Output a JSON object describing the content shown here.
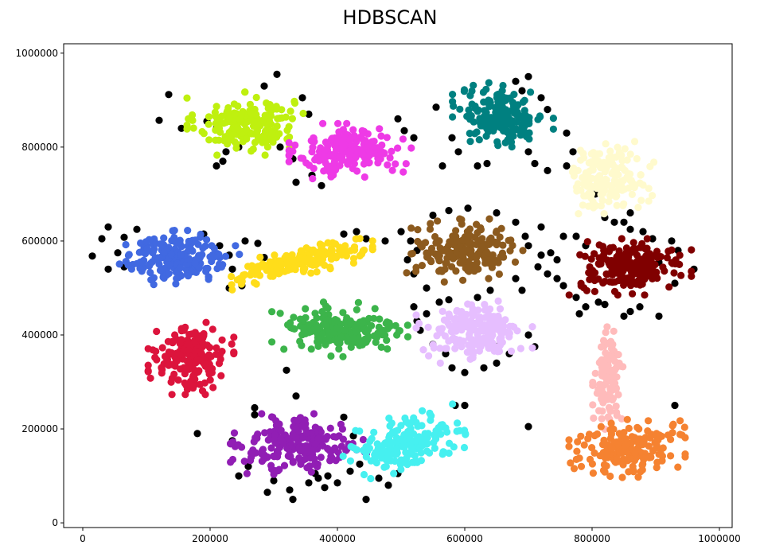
{
  "chart_data": {
    "type": "scatter",
    "title": "HDBSCAN",
    "xlabel": "",
    "ylabel": "",
    "xlim": [
      -30000,
      1020000
    ],
    "ylim": [
      -10000,
      1020000
    ],
    "grid": false,
    "legend": "none",
    "xticks": [
      0,
      200000,
      400000,
      600000,
      800000,
      1000000
    ],
    "xtick_labels": [
      "0",
      "200000",
      "400000",
      "600000",
      "800000",
      "1000000"
    ],
    "yticks": [
      0,
      200000,
      400000,
      600000,
      800000,
      1000000
    ],
    "ytick_labels": [
      "0",
      "200000",
      "400000",
      "600000",
      "800000",
      "1000000"
    ],
    "clusters": [
      {
        "cluster": 0,
        "color": "#BFF00F",
        "center": [
          255000,
          850000
        ],
        "spread": [
          38000,
          28000
        ],
        "tilt": 0.0,
        "points": 190
      },
      {
        "cluster": 1,
        "color": "#EE3AE6",
        "center": [
          420000,
          790000
        ],
        "spread": [
          40000,
          25000
        ],
        "tilt": 0.0,
        "points": 190
      },
      {
        "cluster": 2,
        "color": "#008080",
        "center": [
          660000,
          865000
        ],
        "spread": [
          33000,
          30000
        ],
        "tilt": 0.0,
        "points": 180
      },
      {
        "cluster": 3,
        "color": "#FFFACD",
        "center": [
          825000,
          735000
        ],
        "spread": [
          30000,
          32000
        ],
        "tilt": 0.0,
        "points": 150
      },
      {
        "cluster": 4,
        "color": "#4169E1",
        "center": [
          150000,
          565000
        ],
        "spread": [
          40000,
          24000
        ],
        "tilt": 0.0,
        "points": 200
      },
      {
        "cluster": 5,
        "color": "#FFDD1A",
        "center": [
          340000,
          555000
        ],
        "spread": [
          48000,
          12000
        ],
        "tilt": 0.3,
        "points": 190
      },
      {
        "cluster": 6,
        "color": "#8C5A1E",
        "center": [
          600000,
          580000
        ],
        "spread": [
          38000,
          28000
        ],
        "tilt": 0.0,
        "points": 190
      },
      {
        "cluster": 7,
        "color": "#800000",
        "center": [
          860000,
          545000
        ],
        "spread": [
          40000,
          25000
        ],
        "tilt": 0.0,
        "points": 190
      },
      {
        "cluster": 8,
        "color": "#DC143C",
        "center": [
          170000,
          350000
        ],
        "spread": [
          28000,
          32000
        ],
        "tilt": 0.0,
        "points": 180
      },
      {
        "cluster": 9,
        "color": "#3CB44B",
        "center": [
          405000,
          410000
        ],
        "spread": [
          45000,
          25000
        ],
        "tilt": 0.0,
        "points": 190
      },
      {
        "cluster": 10,
        "color": "#E6BEFF",
        "center": [
          615000,
          405000
        ],
        "spread": [
          38000,
          28000
        ],
        "tilt": 0.0,
        "points": 190
      },
      {
        "cluster": 11,
        "color": "#FFBBBB",
        "center": [
          825000,
          310000
        ],
        "spread": [
          10000,
          45000
        ],
        "tilt": 0.55,
        "points": 110
      },
      {
        "cluster": 12,
        "color": "#911EB4",
        "center": [
          340000,
          165000
        ],
        "spread": [
          45000,
          28000
        ],
        "tilt": 0.0,
        "points": 200
      },
      {
        "cluster": 13,
        "color": "#46F0F0",
        "center": [
          505000,
          170000
        ],
        "spread": [
          40000,
          25000
        ],
        "tilt": 0.3,
        "points": 180
      },
      {
        "cluster": 14,
        "color": "#F58231",
        "center": [
          855000,
          160000
        ],
        "spread": [
          38000,
          28000
        ],
        "tilt": 0.0,
        "points": 180
      }
    ],
    "noise": {
      "color": "#000000",
      "points": [
        [
          135000,
          912000
        ],
        [
          120000,
          857000
        ],
        [
          155000,
          840000
        ],
        [
          195000,
          855000
        ],
        [
          210000,
          840000
        ],
        [
          225000,
          790000
        ],
        [
          245000,
          800000
        ],
        [
          220000,
          770000
        ],
        [
          210000,
          760000
        ],
        [
          305000,
          955000
        ],
        [
          285000,
          930000
        ],
        [
          345000,
          905000
        ],
        [
          355000,
          870000
        ],
        [
          330000,
          775000
        ],
        [
          360000,
          740000
        ],
        [
          375000,
          718000
        ],
        [
          335000,
          725000
        ],
        [
          310000,
          800000
        ],
        [
          495000,
          860000
        ],
        [
          520000,
          820000
        ],
        [
          505000,
          835000
        ],
        [
          555000,
          885000
        ],
        [
          580000,
          820000
        ],
        [
          565000,
          760000
        ],
        [
          590000,
          790000
        ],
        [
          620000,
          760000
        ],
        [
          635000,
          765000
        ],
        [
          680000,
          940000
        ],
        [
          700000,
          950000
        ],
        [
          690000,
          920000
        ],
        [
          720000,
          905000
        ],
        [
          730000,
          880000
        ],
        [
          760000,
          830000
        ],
        [
          770000,
          790000
        ],
        [
          760000,
          760000
        ],
        [
          710000,
          765000
        ],
        [
          700000,
          790000
        ],
        [
          730000,
          750000
        ],
        [
          805000,
          700000
        ],
        [
          820000,
          650000
        ],
        [
          860000,
          660000
        ],
        [
          850000,
          640000
        ],
        [
          835000,
          640000
        ],
        [
          860000,
          625000
        ],
        [
          40000,
          630000
        ],
        [
          30000,
          605000
        ],
        [
          55000,
          575000
        ],
        [
          15000,
          568000
        ],
        [
          40000,
          540000
        ],
        [
          65000,
          545000
        ],
        [
          65000,
          608000
        ],
        [
          85000,
          625000
        ],
        [
          190000,
          615000
        ],
        [
          215000,
          590000
        ],
        [
          230000,
          570000
        ],
        [
          235000,
          540000
        ],
        [
          250000,
          505000
        ],
        [
          230000,
          500000
        ],
        [
          255000,
          600000
        ],
        [
          275000,
          595000
        ],
        [
          300000,
          540000
        ],
        [
          285000,
          565000
        ],
        [
          410000,
          615000
        ],
        [
          430000,
          620000
        ],
        [
          445000,
          605000
        ],
        [
          475000,
          600000
        ],
        [
          500000,
          620000
        ],
        [
          515000,
          600000
        ],
        [
          525000,
          580000
        ],
        [
          510000,
          560000
        ],
        [
          520000,
          530000
        ],
        [
          550000,
          655000
        ],
        [
          575000,
          665000
        ],
        [
          605000,
          670000
        ],
        [
          650000,
          660000
        ],
        [
          680000,
          640000
        ],
        [
          695000,
          610000
        ],
        [
          720000,
          630000
        ],
        [
          700000,
          590000
        ],
        [
          720000,
          570000
        ],
        [
          715000,
          545000
        ],
        [
          730000,
          530000
        ],
        [
          680000,
          520000
        ],
        [
          690000,
          495000
        ],
        [
          640000,
          495000
        ],
        [
          620000,
          480000
        ],
        [
          575000,
          475000
        ],
        [
          540000,
          500000
        ],
        [
          560000,
          470000
        ],
        [
          755000,
          610000
        ],
        [
          775000,
          610000
        ],
        [
          790000,
          590000
        ],
        [
          745000,
          560000
        ],
        [
          735000,
          575000
        ],
        [
          745000,
          520000
        ],
        [
          755000,
          505000
        ],
        [
          775000,
          480000
        ],
        [
          790000,
          460000
        ],
        [
          780000,
          445000
        ],
        [
          810000,
          470000
        ],
        [
          820000,
          465000
        ],
        [
          850000,
          440000
        ],
        [
          860000,
          450000
        ],
        [
          875000,
          460000
        ],
        [
          905000,
          440000
        ],
        [
          930000,
          510000
        ],
        [
          960000,
          540000
        ],
        [
          935000,
          580000
        ],
        [
          925000,
          600000
        ],
        [
          895000,
          605000
        ],
        [
          880000,
          620000
        ],
        [
          905000,
          555000
        ],
        [
          520000,
          460000
        ],
        [
          540000,
          445000
        ],
        [
          525000,
          430000
        ],
        [
          530000,
          410000
        ],
        [
          550000,
          380000
        ],
        [
          570000,
          360000
        ],
        [
          580000,
          330000
        ],
        [
          600000,
          320000
        ],
        [
          630000,
          330000
        ],
        [
          650000,
          340000
        ],
        [
          700000,
          400000
        ],
        [
          710000,
          375000
        ],
        [
          670000,
          360000
        ],
        [
          655000,
          380000
        ],
        [
          320000,
          325000
        ],
        [
          180000,
          190000
        ],
        [
          235000,
          175000
        ],
        [
          245000,
          100000
        ],
        [
          260000,
          120000
        ],
        [
          270000,
          230000
        ],
        [
          270000,
          245000
        ],
        [
          290000,
          65000
        ],
        [
          300000,
          90000
        ],
        [
          325000,
          70000
        ],
        [
          330000,
          50000
        ],
        [
          335000,
          270000
        ],
        [
          355000,
          85000
        ],
        [
          370000,
          95000
        ],
        [
          385000,
          100000
        ],
        [
          400000,
          85000
        ],
        [
          410000,
          225000
        ],
        [
          425000,
          185000
        ],
        [
          420000,
          110000
        ],
        [
          435000,
          125000
        ],
        [
          445000,
          50000
        ],
        [
          465000,
          95000
        ],
        [
          480000,
          80000
        ],
        [
          495000,
          105000
        ],
        [
          585000,
          250000
        ],
        [
          600000,
          250000
        ],
        [
          700000,
          205000
        ],
        [
          930000,
          250000
        ],
        [
          365000,
          105000
        ],
        [
          380000,
          75000
        ]
      ]
    }
  }
}
